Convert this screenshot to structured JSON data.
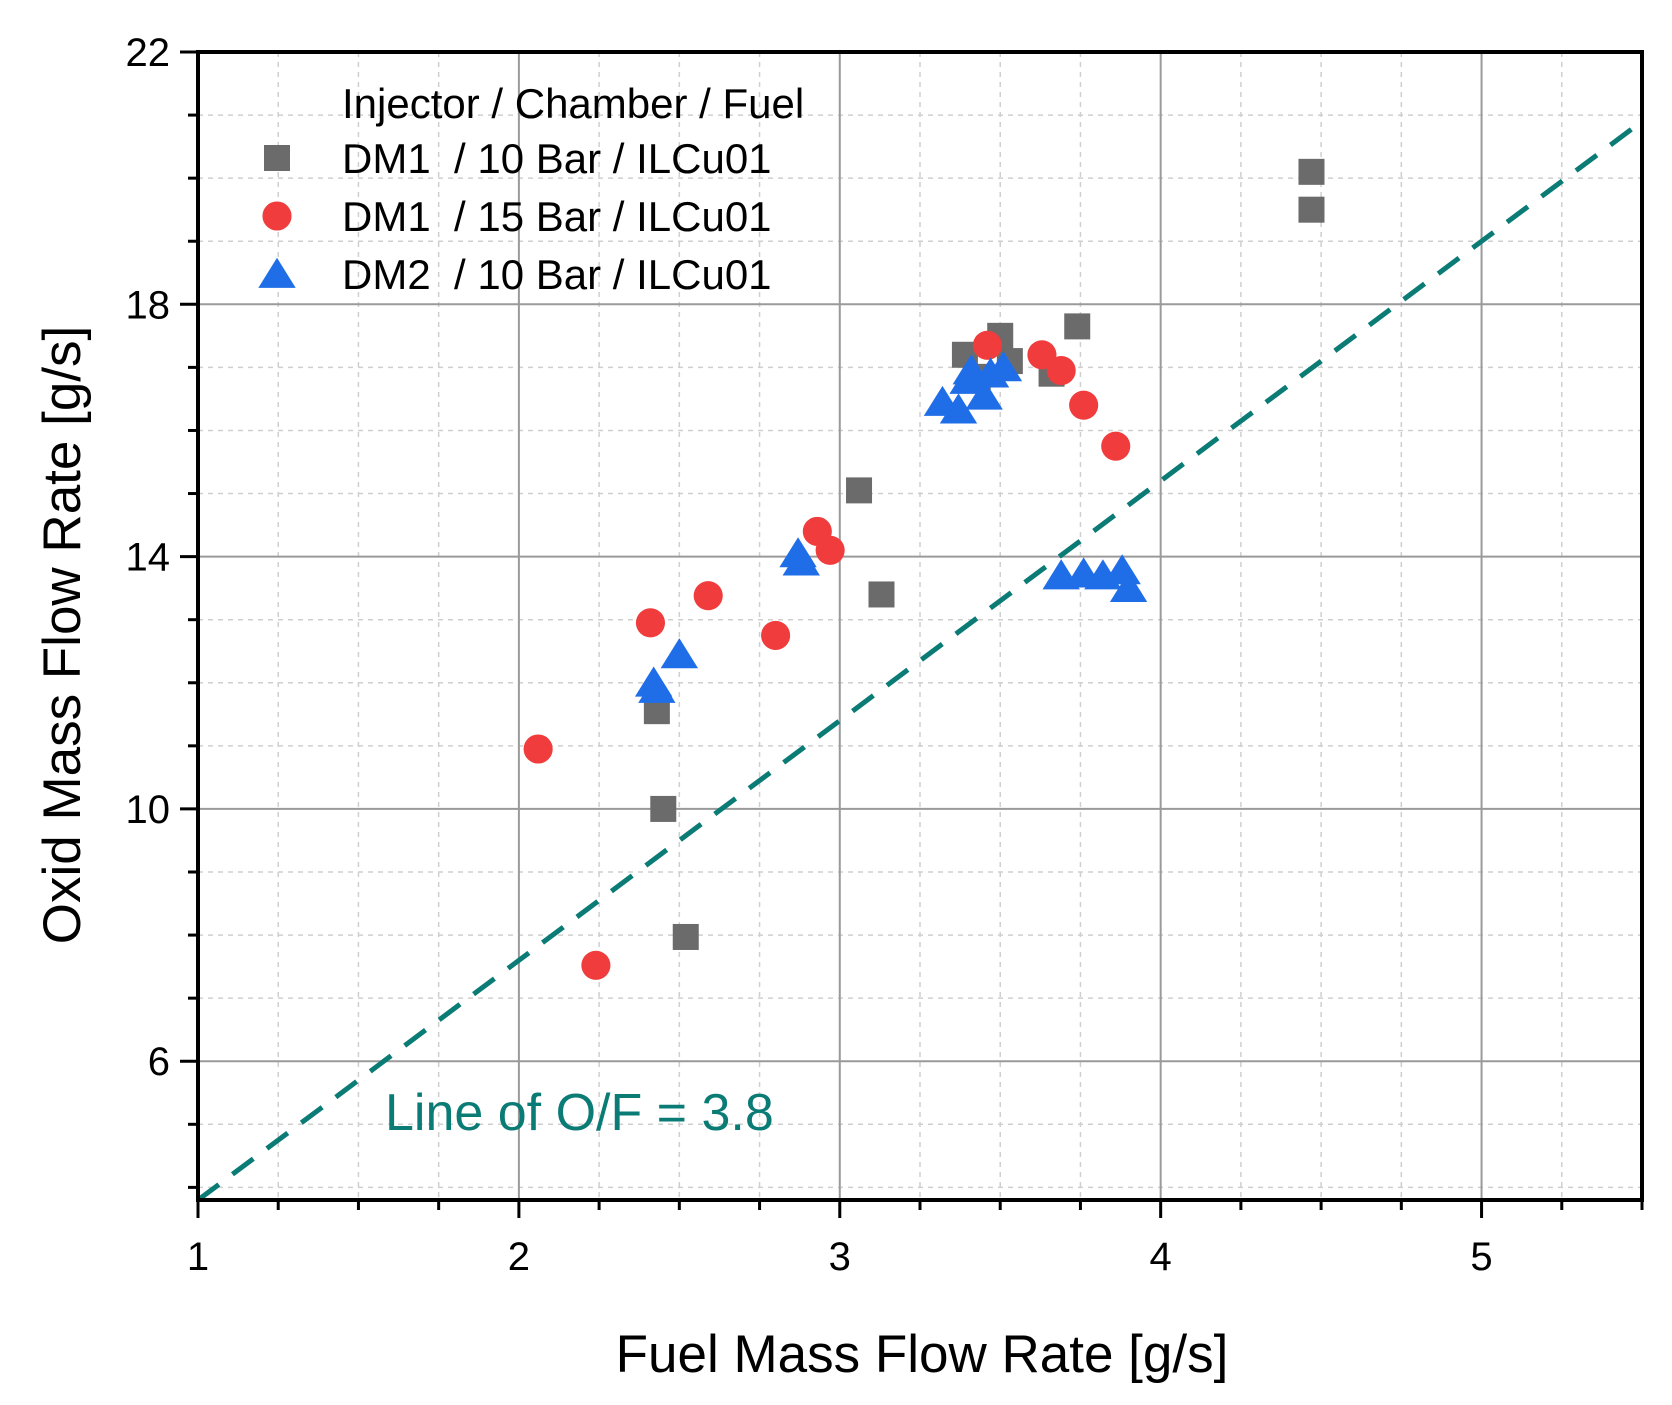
{
  "chart_data": {
    "type": "scatter",
    "xlabel": "Fuel Mass Flow Rate [g/s]",
    "ylabel": "Oxid Mass Flow Rate [g/s]",
    "xlim": [
      1,
      5.5
    ],
    "ylim": [
      3.8,
      22
    ],
    "xticks": [
      1,
      2,
      3,
      4,
      5
    ],
    "yticks": [
      6,
      10,
      14,
      18,
      22
    ],
    "x_minor_step": 0.25,
    "y_minor_step": 1,
    "grid": true,
    "legend": {
      "title": "Injector / Chamber / Fuel",
      "placement": "top-left"
    },
    "series": [
      {
        "name": "DM1  / 10 Bar / ILCu01",
        "marker": "square",
        "color": "#6b6b6b",
        "points": [
          [
            2.43,
            11.55
          ],
          [
            2.45,
            10.0
          ],
          [
            2.52,
            7.97
          ],
          [
            3.06,
            15.05
          ],
          [
            3.13,
            13.4
          ],
          [
            3.39,
            17.2
          ],
          [
            3.43,
            16.85
          ],
          [
            3.5,
            17.5
          ],
          [
            3.53,
            17.1
          ],
          [
            3.66,
            16.9
          ],
          [
            3.74,
            17.65
          ],
          [
            4.47,
            19.5
          ],
          [
            4.47,
            20.1
          ]
        ]
      },
      {
        "name": "DM1  / 15 Bar / ILCu01",
        "marker": "circle",
        "color": "#f03c3c",
        "points": [
          [
            2.06,
            10.95
          ],
          [
            2.24,
            7.52
          ],
          [
            2.41,
            12.95
          ],
          [
            2.59,
            13.38
          ],
          [
            2.8,
            12.75
          ],
          [
            2.93,
            14.4
          ],
          [
            2.97,
            14.1
          ],
          [
            3.46,
            17.35
          ],
          [
            3.63,
            17.2
          ],
          [
            3.69,
            16.95
          ],
          [
            3.76,
            16.4
          ],
          [
            3.86,
            15.75
          ]
        ]
      },
      {
        "name": "DM2  / 10 Bar / ILCu01",
        "marker": "triangle",
        "color": "#1f6ee8",
        "points": [
          [
            2.42,
            12.0
          ],
          [
            2.43,
            11.9
          ],
          [
            2.5,
            12.45
          ],
          [
            2.87,
            14.05
          ],
          [
            2.88,
            13.92
          ],
          [
            3.32,
            16.45
          ],
          [
            3.37,
            16.33
          ],
          [
            3.4,
            16.8
          ],
          [
            3.41,
            16.95
          ],
          [
            3.45,
            16.55
          ],
          [
            3.47,
            16.9
          ],
          [
            3.51,
            17.0
          ],
          [
            3.69,
            13.7
          ],
          [
            3.76,
            13.73
          ],
          [
            3.82,
            13.7
          ],
          [
            3.88,
            13.78
          ],
          [
            3.9,
            13.5
          ]
        ]
      }
    ],
    "reference_line": {
      "label": "Line of O/F = 3.8",
      "slope": 3.8,
      "color": "#0b7b75",
      "style": "dashed"
    }
  }
}
